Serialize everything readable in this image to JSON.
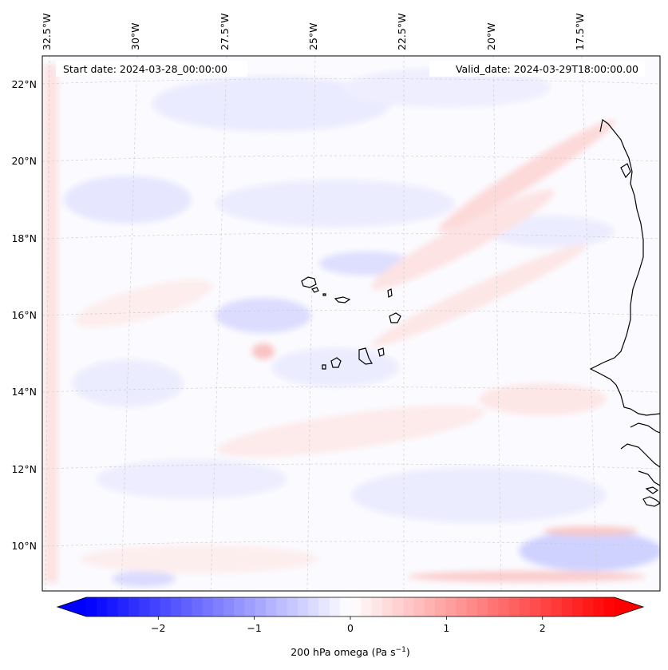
{
  "map": {
    "start_date": "Start date: 2024-03-28_00:00:00",
    "valid_date": "Valid_date: 2024-03-29T18:00:00.00",
    "lon_ticks": [
      "32.5°W",
      "30°W",
      "27.5°W",
      "25°W",
      "22.5°W",
      "20°W",
      "17.5°W"
    ],
    "lat_ticks": [
      "22°N",
      "20°N",
      "18°N",
      "16°N",
      "14°N",
      "12°N",
      "10°N"
    ],
    "extent": {
      "lon_min": -32.7,
      "lon_max": -15.3,
      "lat_min": 8.9,
      "lat_max": 22.8
    },
    "gridlines": true
  },
  "colorbar": {
    "label": "200 hPa omega (Pa s",
    "label_sup": "−1",
    "label_close": ")",
    "ticks": [
      "−2",
      "−1",
      "0",
      "1",
      "2"
    ],
    "tick_values": [
      -2,
      -1,
      0,
      1,
      2
    ],
    "range": [
      -2.75,
      2.75
    ],
    "colormap": "bwr",
    "extend": "both",
    "low_color": "#0000ff",
    "mid_color": "#ffffff",
    "high_color": "#ff0000"
  }
}
